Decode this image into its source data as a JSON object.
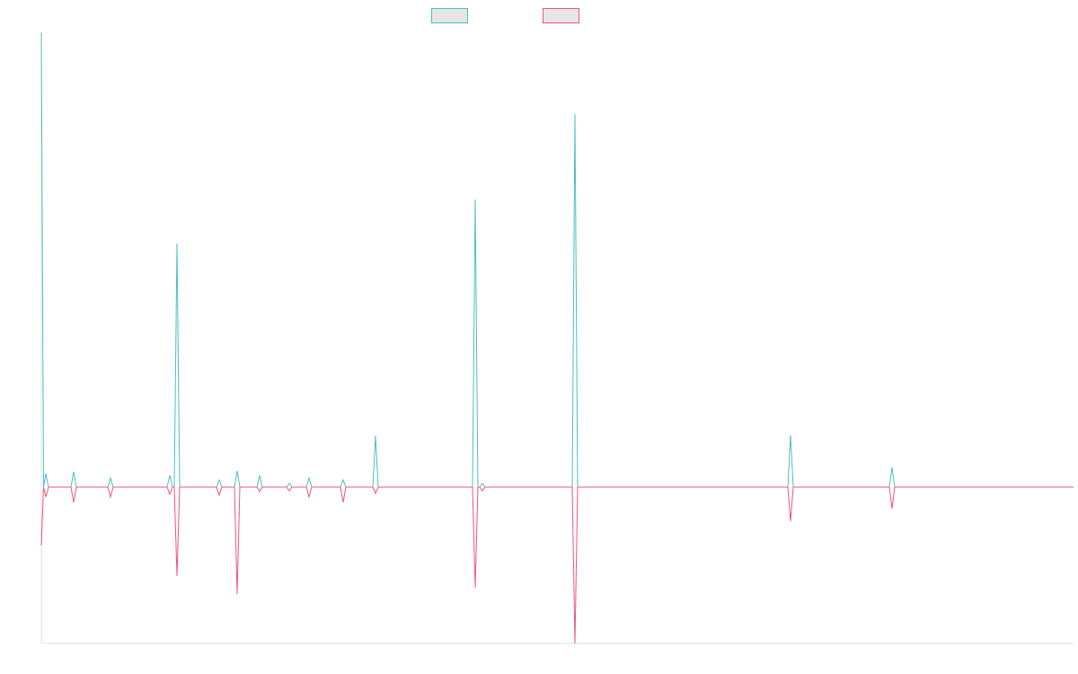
{
  "chart_data": {
    "type": "line",
    "x": [
      0,
      2.5,
      5,
      8,
      33,
      36,
      39,
      74,
      77,
      80,
      140,
      143,
      146,
      148,
      151,
      154,
      195,
      198,
      201,
      215,
      218,
      221,
      240,
      243,
      246,
      273,
      276,
      279,
      295,
      298,
      301,
      333,
      336,
      339,
      369,
      372,
      375,
      480,
      483,
      486,
      488,
      491,
      494,
      591,
      594,
      597,
      831,
      834,
      837,
      944,
      947,
      950,
      1149
    ],
    "xlim": [
      0,
      1149
    ],
    "ylim": [
      -174,
      506
    ],
    "series": [
      {
        "color": "#4bbfc3",
        "values": [
          506,
          0,
          15,
          0,
          0,
          17,
          0,
          0,
          10,
          0,
          0,
          13,
          0,
          0,
          271,
          0,
          0,
          8,
          0,
          0,
          18,
          0,
          0,
          13,
          0,
          0,
          4,
          0,
          0,
          10,
          0,
          0,
          8,
          0,
          0,
          57,
          0,
          0,
          320,
          0,
          0,
          4,
          0,
          0,
          415,
          0,
          0,
          58,
          0,
          0,
          22,
          0,
          0
        ]
      },
      {
        "color": "#f0557a",
        "values": [
          -65,
          0,
          -11,
          0,
          0,
          -17,
          0,
          0,
          -11,
          0,
          0,
          -8,
          0,
          0,
          -99,
          0,
          0,
          -9,
          0,
          0,
          -119,
          0,
          0,
          -5,
          0,
          0,
          -4,
          0,
          0,
          -11,
          0,
          0,
          -17,
          0,
          0,
          -7,
          0,
          0,
          -112,
          0,
          0,
          -4,
          0,
          0,
          -174,
          0,
          0,
          -38,
          0,
          0,
          -24,
          0,
          0
        ]
      }
    ]
  }
}
